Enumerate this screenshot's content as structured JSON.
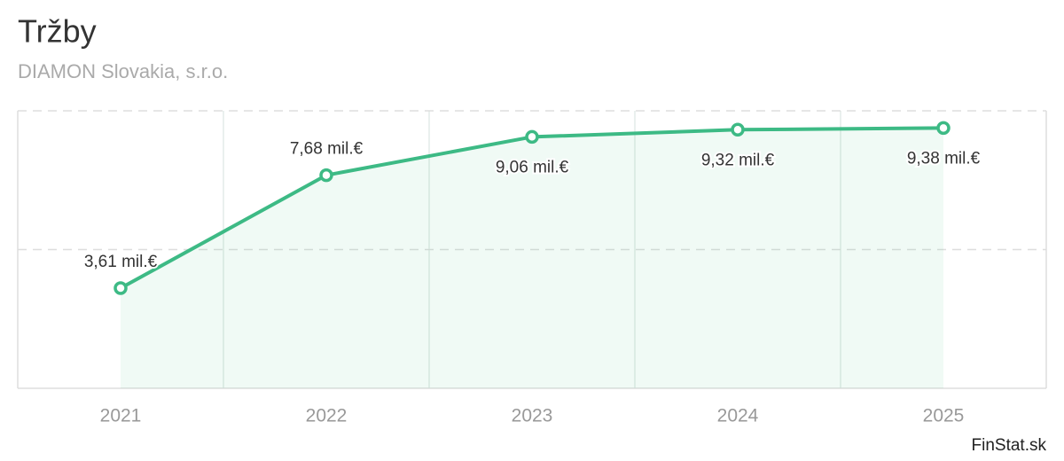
{
  "chart_data": {
    "type": "line",
    "title": "Tržby",
    "subtitle": "DIAMON Slovakia, s.r.o.",
    "categories": [
      "2021",
      "2022",
      "2023",
      "2024",
      "2025"
    ],
    "series": [
      {
        "name": "Tržby",
        "color": "#3dba85",
        "values": [
          3.61,
          7.68,
          9.06,
          9.32,
          9.38
        ],
        "value_labels": [
          "3,61 mil.€",
          "7,68 mil.€",
          "9,06 mil.€",
          "9,32 mil.€",
          "9,38 mil.€"
        ]
      }
    ],
    "ylim": [
      0,
      10
    ],
    "yticks": [
      0,
      5,
      10
    ],
    "grid": true,
    "source": "FinStat.sk"
  }
}
